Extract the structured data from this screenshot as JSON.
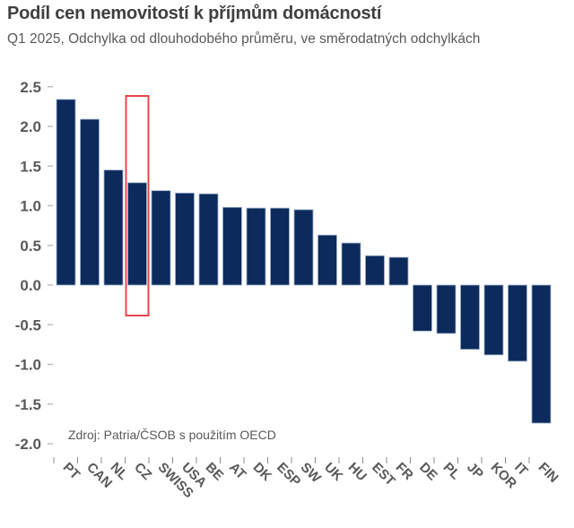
{
  "header": {
    "title": "Podíl cen nemovitostí k příjmům domácností",
    "subtitle": "Q1 2025, Odchylka od dlouhodobého průměru, ve směrodatných odchylkách"
  },
  "colors": {
    "bar": "#0c2a5b",
    "bar_edge": "#9fb2cf",
    "highlight": "#e8474c",
    "text": "#595959"
  },
  "chart_data": {
    "type": "bar",
    "title": "Podíl cen nemovitostí k příjmům domácností",
    "subtitle": "Q1 2025, Odchylka od dlouhodobého průměru, ve směrodatných odchylkách",
    "xlabel": "",
    "ylabel": "",
    "categories": [
      "PT",
      "CAN",
      "NL",
      "CZ",
      "SWISS",
      "USA",
      "BE",
      "AT",
      "DK",
      "ESP",
      "SW",
      "UK",
      "HU",
      "EST",
      "FR",
      "DE",
      "PL",
      "JP",
      "KOR",
      "IT",
      "FIN"
    ],
    "values": [
      2.34,
      2.09,
      1.45,
      1.29,
      1.19,
      1.16,
      1.15,
      0.98,
      0.97,
      0.97,
      0.95,
      0.63,
      0.53,
      0.37,
      0.35,
      -0.58,
      -0.61,
      -0.81,
      -0.88,
      -0.96,
      -1.74
    ],
    "ylim": [
      -2.0,
      2.5
    ],
    "yticks": [
      2.5,
      2.0,
      1.5,
      1.0,
      0.5,
      0.0,
      -0.5,
      -1.0,
      -1.5,
      -2.0
    ],
    "ytick_labels": [
      "2.5",
      "2.0",
      "1.5",
      "1.0",
      "0.5",
      "0.0",
      "-0.5",
      "-1.0",
      "-1.5",
      "-2.0"
    ],
    "highlighted_category": "CZ",
    "grid": false,
    "legend": "none",
    "annotations": [
      "Zdroj: Patria/ČSOB s použitím OECD"
    ]
  }
}
